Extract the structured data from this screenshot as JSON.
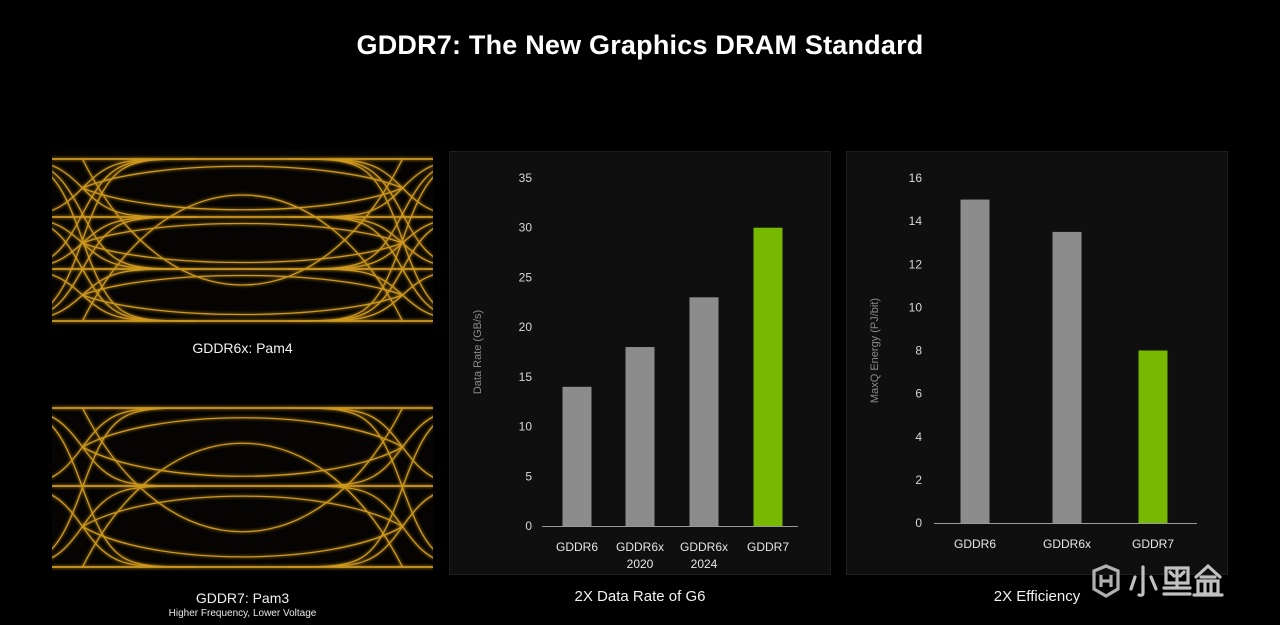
{
  "title": "GDDR7: The New Graphics DRAM Standard",
  "eye_diagrams": [
    {
      "caption": "GDDR6x: Pam4",
      "levels": 4
    },
    {
      "caption": "GDDR7: Pam3",
      "subcaption": "Higher Frequency, Lower Voltage",
      "levels": 3
    }
  ],
  "colors": {
    "background": "#000000",
    "panel": "#0e0f0e",
    "bar_gray": "#8c8c8c",
    "bar_green": "#76b900",
    "eye_trace": "#e0a520"
  },
  "watermark": {
    "text": "小黑盒"
  },
  "chart_data": [
    {
      "type": "bar",
      "caption": "2X Data Rate of G6",
      "categories": [
        [
          "GDDR6"
        ],
        [
          "GDDR6x",
          "2020"
        ],
        [
          "GDDR6x",
          "2024"
        ],
        [
          "GDDR7"
        ]
      ],
      "values": [
        14,
        18,
        23,
        30
      ],
      "highlight": [
        false,
        false,
        false,
        true
      ],
      "ylabel": "Data Rate (GB/s)",
      "ylim": [
        0,
        35
      ],
      "yticks": [
        0,
        5,
        10,
        15,
        20,
        25,
        30,
        35
      ],
      "grid": false
    },
    {
      "type": "bar",
      "caption": "2X Efficiency",
      "categories": [
        [
          "GDDR6"
        ],
        [
          "GDDR6x"
        ],
        [
          "GDDR7"
        ]
      ],
      "values": [
        15,
        13.5,
        8
      ],
      "highlight": [
        false,
        false,
        true
      ],
      "ylabel": "MaxQ Energy (PJ/bit)",
      "ylim": [
        0,
        16
      ],
      "yticks": [
        0,
        2,
        4,
        6,
        8,
        10,
        12,
        14,
        16
      ],
      "grid": false
    }
  ]
}
